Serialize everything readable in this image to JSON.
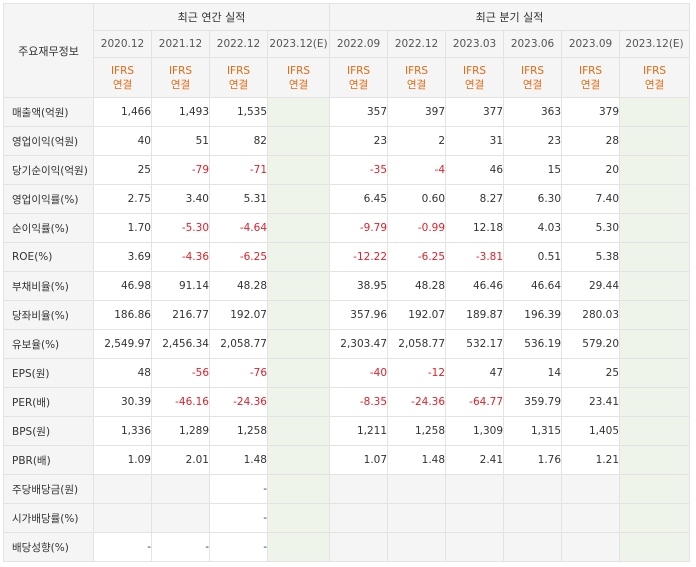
{
  "header": {
    "row_label": "주요재무정보",
    "annual_group": "최근 연간 실적",
    "quarter_group": "최근 분기 실적",
    "annual_periods": [
      "2020.12",
      "2021.12",
      "2022.12",
      "2023.12(E)"
    ],
    "quarter_periods": [
      "2022.09",
      "2022.12",
      "2023.03",
      "2023.06",
      "2023.09",
      "2023.12(E)"
    ],
    "ifrs_line1": "IFRS",
    "ifrs_line2": "연결"
  },
  "rows": [
    {
      "label": "매출액(억원)",
      "values": [
        "1,466",
        "1,493",
        "1,535",
        "",
        "357",
        "397",
        "377",
        "363",
        "379",
        ""
      ]
    },
    {
      "label": "영업이익(억원)",
      "values": [
        "40",
        "51",
        "82",
        "",
        "23",
        "2",
        "31",
        "23",
        "28",
        ""
      ]
    },
    {
      "label": "당기순이익(억원)",
      "values": [
        "25",
        "-79",
        "-71",
        "",
        "-35",
        "-4",
        "46",
        "15",
        "20",
        ""
      ]
    },
    {
      "label": "영업이익률(%)",
      "values": [
        "2.75",
        "3.40",
        "5.31",
        "",
        "6.45",
        "0.60",
        "8.27",
        "6.30",
        "7.40",
        ""
      ]
    },
    {
      "label": "순이익률(%)",
      "values": [
        "1.70",
        "-5.30",
        "-4.64",
        "",
        "-9.79",
        "-0.99",
        "12.18",
        "4.03",
        "5.30",
        ""
      ]
    },
    {
      "label": "ROE(%)",
      "values": [
        "3.69",
        "-4.36",
        "-6.25",
        "",
        "-12.22",
        "-6.25",
        "-3.81",
        "0.51",
        "5.38",
        ""
      ]
    },
    {
      "label": "부채비율(%)",
      "values": [
        "46.98",
        "91.14",
        "48.28",
        "",
        "38.95",
        "48.28",
        "46.46",
        "46.64",
        "29.44",
        ""
      ]
    },
    {
      "label": "당좌비율(%)",
      "values": [
        "186.86",
        "216.77",
        "192.07",
        "",
        "357.96",
        "192.07",
        "189.87",
        "196.39",
        "280.03",
        ""
      ]
    },
    {
      "label": "유보율(%)",
      "values": [
        "2,549.97",
        "2,456.34",
        "2,058.77",
        "",
        "2,303.47",
        "2,058.77",
        "532.17",
        "536.19",
        "579.20",
        ""
      ]
    },
    {
      "label": "EPS(원)",
      "values": [
        "48",
        "-56",
        "-76",
        "",
        "-40",
        "-12",
        "47",
        "14",
        "25",
        ""
      ]
    },
    {
      "label": "PER(배)",
      "values": [
        "30.39",
        "-46.16",
        "-24.36",
        "",
        "-8.35",
        "-24.36",
        "-64.77",
        "359.79",
        "23.41",
        ""
      ]
    },
    {
      "label": "BPS(원)",
      "values": [
        "1,336",
        "1,289",
        "1,258",
        "",
        "1,211",
        "1,258",
        "1,309",
        "1,315",
        "1,405",
        ""
      ]
    },
    {
      "label": "PBR(배)",
      "values": [
        "1.09",
        "2.01",
        "1.48",
        "",
        "1.07",
        "1.48",
        "2.41",
        "1.76",
        "1.21",
        ""
      ]
    },
    {
      "label": "주당배당금(원)",
      "values": [
        "",
        "",
        "-",
        "",
        "",
        "",
        "",
        "",
        "",
        ""
      ],
      "blank_cols": [
        0,
        1,
        3,
        4,
        5,
        6,
        7,
        8,
        9
      ]
    },
    {
      "label": "시가배당률(%)",
      "values": [
        "",
        "",
        "-",
        "",
        "",
        "",
        "",
        "",
        "",
        ""
      ],
      "blank_cols": [
        0,
        1,
        3,
        4,
        5,
        6,
        7,
        8,
        9
      ]
    },
    {
      "label": "배당성향(%)",
      "values": [
        "-",
        "-",
        "-",
        "",
        "",
        "",
        "",
        "",
        "",
        ""
      ],
      "blank_cols": [
        3,
        4,
        5,
        6,
        7,
        8,
        9
      ]
    }
  ]
}
